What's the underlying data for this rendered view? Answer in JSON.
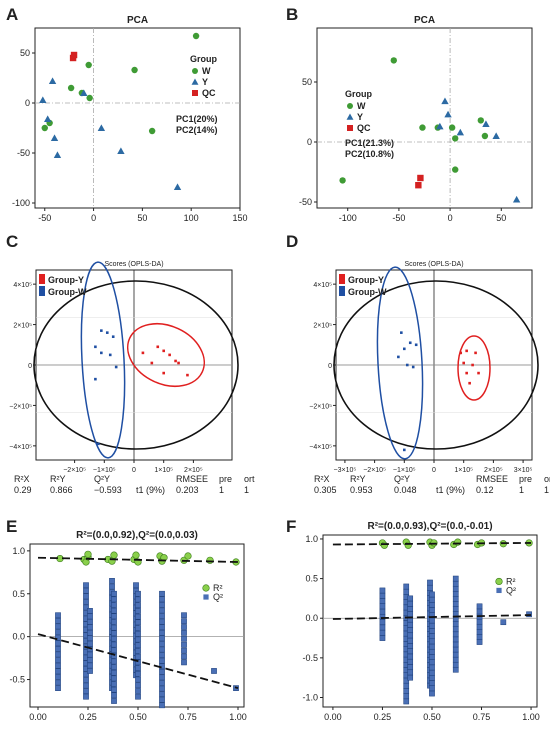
{
  "panel_labels": [
    "A",
    "B",
    "C",
    "D",
    "E",
    "F"
  ],
  "colors": {
    "W": "#3f9b35",
    "Y": "#2c6aa3",
    "QC": "#d42121",
    "groupY": "#e02020",
    "groupW": "#1f4fa3",
    "r2": "#8ad04b",
    "q2": "#4a6fb5"
  },
  "chart_data": [
    {
      "id": "A",
      "type": "scatter",
      "title": "PCA",
      "xlim": [
        -60,
        150
      ],
      "ylim": [
        -105,
        75
      ],
      "xticks": [
        "-50",
        "0",
        "50",
        "100",
        "150"
      ],
      "xtick_values": [
        -50,
        0,
        50,
        100,
        150
      ],
      "yticks": [
        "50",
        "0",
        "-50",
        "-100"
      ],
      "ytick_values": [
        50,
        0,
        -50,
        -100
      ],
      "legend_title": "Group",
      "series": [
        {
          "name": "W",
          "shape": "circle",
          "points": [
            [
              105,
              67
            ],
            [
              42,
              33
            ],
            [
              -5,
              38
            ],
            [
              -23,
              15
            ],
            [
              -45,
              -20
            ],
            [
              -50,
              -25
            ],
            [
              -12,
              10
            ],
            [
              -4,
              5
            ],
            [
              60,
              -28
            ]
          ]
        },
        {
          "name": "Y",
          "shape": "triangle",
          "points": [
            [
              -52,
              3
            ],
            [
              -47,
              -16
            ],
            [
              -40,
              -35
            ],
            [
              -37,
              -52
            ],
            [
              -10,
              10
            ],
            [
              8,
              -25
            ],
            [
              28,
              -48
            ],
            [
              86,
              -84
            ],
            [
              -42,
              22
            ]
          ]
        },
        {
          "name": "QC",
          "shape": "square",
          "points": [
            [
              -21,
              45
            ],
            [
              -20,
              48
            ]
          ]
        }
      ],
      "pc_text": [
        "PC1(20%)",
        "PC2(14%)"
      ]
    },
    {
      "id": "B",
      "type": "scatter",
      "title": "PCA",
      "xlim": [
        -130,
        80
      ],
      "ylim": [
        -55,
        95
      ],
      "xticks": [
        "-100",
        "-50",
        "0",
        "50"
      ],
      "xtick_values": [
        -100,
        -50,
        0,
        50
      ],
      "yticks": [
        "50",
        "0",
        "-50"
      ],
      "ytick_values": [
        50,
        0,
        -50
      ],
      "legend_title": "Group",
      "series": [
        {
          "name": "W",
          "shape": "circle",
          "points": [
            [
              -55,
              68
            ],
            [
              -27,
              12
            ],
            [
              -12,
              12
            ],
            [
              5,
              -23
            ],
            [
              2,
              12
            ],
            [
              30,
              18
            ],
            [
              34,
              5
            ],
            [
              -105,
              -32
            ],
            [
              5,
              3
            ]
          ]
        },
        {
          "name": "Y",
          "shape": "triangle",
          "points": [
            [
              -5,
              34
            ],
            [
              -2,
              23
            ],
            [
              10,
              8
            ],
            [
              35,
              15
            ],
            [
              45,
              5
            ],
            [
              65,
              -48
            ],
            [
              -10,
              13
            ]
          ]
        },
        {
          "name": "QC",
          "shape": "square",
          "points": [
            [
              -29,
              -30
            ],
            [
              -31,
              -36
            ]
          ]
        }
      ],
      "pc_text": [
        "PC1(21.3%)",
        "PC2(10.8%)"
      ]
    },
    {
      "id": "C",
      "type": "scatter",
      "title": "Scores (OPLS-DA)",
      "xlim": [
        -330000,
        330000
      ],
      "ylim": [
        -470000,
        470000
      ],
      "xticks": [
        "−2×10⁵",
        "−1×10⁵",
        "0",
        "1×10⁵",
        "2×10⁵"
      ],
      "xtick_values": [
        -200000,
        -100000,
        0,
        100000,
        200000
      ],
      "yticks": [
        "4×10⁵",
        "2×10⁵",
        "0",
        "−2×10⁵",
        "−4×10⁵"
      ],
      "ytick_values": [
        400000,
        200000,
        0,
        -200000,
        -400000
      ],
      "legend": [
        "Group-Y",
        "Group-W"
      ],
      "series": [
        {
          "name": "Group-Y",
          "points": [
            [
              30000,
              60000
            ],
            [
              80000,
              90000
            ],
            [
              100000,
              70000
            ],
            [
              60000,
              10000
            ],
            [
              100000,
              -40000
            ],
            [
              120000,
              50000
            ],
            [
              150000,
              10000
            ],
            [
              180000,
              -50000
            ],
            [
              140000,
              20000
            ]
          ]
        },
        {
          "name": "Group-W",
          "points": [
            [
              -110000,
              170000
            ],
            [
              -90000,
              160000
            ],
            [
              -70000,
              140000
            ],
            [
              -130000,
              90000
            ],
            [
              -80000,
              50000
            ],
            [
              -110000,
              60000
            ],
            [
              -60000,
              -10000
            ],
            [
              -130000,
              -70000
            ],
            [
              -120000,
              -390000
            ]
          ]
        }
      ],
      "xlabel": "t1 (9%)",
      "stats_header": [
        "R²X",
        "R²Y",
        "Q²Y",
        "RMSEE",
        "pre",
        "ort"
      ],
      "stats_values": [
        "0.29",
        "0.866",
        "−0.593",
        "0.203",
        "1",
        "1"
      ]
    },
    {
      "id": "D",
      "type": "scatter",
      "title": "Scores (OPLS-DA)",
      "xlim": [
        -330000,
        330000
      ],
      "ylim": [
        -470000,
        470000
      ],
      "xticks": [
        "−3×10⁵",
        "−2×10⁵",
        "−1×10⁵",
        "0",
        "1×10⁵",
        "2×10⁵",
        "3×10⁵"
      ],
      "xtick_values": [
        -300000,
        -200000,
        -100000,
        0,
        100000,
        200000,
        300000
      ],
      "yticks": [
        "4×10⁵",
        "2×10⁵",
        "0",
        "−2×10⁵",
        "−4×10⁵"
      ],
      "ytick_values": [
        400000,
        200000,
        0,
        -200000,
        -400000
      ],
      "legend": [
        "Group-Y",
        "Group-W"
      ],
      "series": [
        {
          "name": "Group-Y",
          "points": [
            [
              90000,
              60000
            ],
            [
              110000,
              70000
            ],
            [
              140000,
              60000
            ],
            [
              100000,
              10000
            ],
            [
              130000,
              0
            ],
            [
              110000,
              -40000
            ],
            [
              150000,
              -40000
            ],
            [
              120000,
              -90000
            ]
          ]
        },
        {
          "name": "Group-W",
          "points": [
            [
              -110000,
              160000
            ],
            [
              -80000,
              110000
            ],
            [
              -100000,
              80000
            ],
            [
              -60000,
              100000
            ],
            [
              -120000,
              40000
            ],
            [
              -90000,
              0
            ],
            [
              -70000,
              -10000
            ],
            [
              -100000,
              -420000
            ]
          ]
        }
      ],
      "xlabel": "t1 (9%)",
      "stats_header": [
        "R²X",
        "R²Y",
        "Q²Y",
        "RMSEE",
        "pre",
        "ort"
      ],
      "stats_values": [
        "0.305",
        "0.953",
        "0.048",
        "0.12",
        "1",
        "1"
      ]
    },
    {
      "id": "E",
      "type": "scatter",
      "title": "R²=(0.0,0.92),Q²=(0.0,0.03)",
      "xlim": [
        -0.04,
        1.03
      ],
      "ylim": [
        -0.82,
        1.08
      ],
      "xticks": [
        "0.00",
        "0.25",
        "0.50",
        "0.75",
        "1.00"
      ],
      "xtick_values": [
        0,
        0.25,
        0.5,
        0.75,
        1
      ],
      "yticks": [
        "1.0",
        "0.5",
        "0.0",
        "-0.5"
      ],
      "ytick_values": [
        1,
        0.5,
        0,
        -0.5
      ],
      "legend": [
        "R²",
        "Q²"
      ],
      "r2_points": [
        [
          0.11,
          0.91
        ],
        [
          0.23,
          0.9
        ],
        [
          0.24,
          0.87
        ],
        [
          0.25,
          0.93
        ],
        [
          0.25,
          0.96
        ],
        [
          0.35,
          0.9
        ],
        [
          0.37,
          0.88
        ],
        [
          0.38,
          0.95
        ],
        [
          0.48,
          0.9
        ],
        [
          0.49,
          0.95
        ],
        [
          0.5,
          0.87
        ],
        [
          0.61,
          0.94
        ],
        [
          0.62,
          0.88
        ],
        [
          0.63,
          0.92
        ],
        [
          0.73,
          0.89
        ],
        [
          0.75,
          0.94
        ],
        [
          0.86,
          0.89
        ],
        [
          0.99,
          0.87
        ]
      ],
      "q2_columns": [
        {
          "x": 0.1,
          "min": -0.6,
          "max": 0.25
        },
        {
          "x": 0.24,
          "min": -0.7,
          "max": 0.6
        },
        {
          "x": 0.26,
          "min": -0.4,
          "max": 0.3
        },
        {
          "x": 0.37,
          "min": -0.6,
          "max": 0.65
        },
        {
          "x": 0.38,
          "min": -0.75,
          "max": 0.5
        },
        {
          "x": 0.49,
          "min": -0.45,
          "max": 0.6
        },
        {
          "x": 0.5,
          "min": -0.7,
          "max": 0.5
        },
        {
          "x": 0.62,
          "min": -0.8,
          "max": 0.5
        },
        {
          "x": 0.73,
          "min": -0.3,
          "max": 0.25
        },
        {
          "x": 0.88,
          "min": -0.4,
          "max": -0.4
        },
        {
          "x": 0.99,
          "min": -0.6,
          "max": -0.6
        }
      ],
      "r2_line": [
        [
          0,
          0.92
        ],
        [
          1,
          0.87
        ]
      ],
      "q2_line": [
        [
          0,
          0.03
        ],
        [
          1,
          -0.6
        ]
      ]
    },
    {
      "id": "F",
      "type": "scatter",
      "title": "R²=(0.0,0.93),Q²=(0.0,-0.01)",
      "xlim": [
        -0.05,
        1.03
      ],
      "ylim": [
        -1.12,
        1.05
      ],
      "xticks": [
        "0.00",
        "0.25",
        "0.50",
        "0.75",
        "1.00"
      ],
      "xtick_values": [
        0,
        0.25,
        0.5,
        0.75,
        1
      ],
      "yticks": [
        "1.0",
        "0.5",
        "0.0",
        "-0.5",
        "-1.0"
      ],
      "ytick_values": [
        1,
        0.5,
        0,
        -0.5,
        -1
      ],
      "legend": [
        "R²",
        "Q²"
      ],
      "r2_points": [
        [
          0.25,
          0.95
        ],
        [
          0.26,
          0.92
        ],
        [
          0.37,
          0.96
        ],
        [
          0.38,
          0.92
        ],
        [
          0.49,
          0.96
        ],
        [
          0.5,
          0.92
        ],
        [
          0.51,
          0.95
        ],
        [
          0.61,
          0.93
        ],
        [
          0.63,
          0.96
        ],
        [
          0.73,
          0.93
        ],
        [
          0.75,
          0.95
        ],
        [
          0.86,
          0.94
        ],
        [
          0.99,
          0.95
        ]
      ],
      "q2_columns": [
        {
          "x": 0.25,
          "min": -0.25,
          "max": 0.35
        },
        {
          "x": 0.37,
          "min": -1.05,
          "max": 0.4
        },
        {
          "x": 0.39,
          "min": -0.75,
          "max": 0.25
        },
        {
          "x": 0.49,
          "min": -0.85,
          "max": 0.45
        },
        {
          "x": 0.5,
          "min": -0.95,
          "max": 0.3
        },
        {
          "x": 0.62,
          "min": -0.65,
          "max": 0.5
        },
        {
          "x": 0.74,
          "min": -0.3,
          "max": 0.15
        },
        {
          "x": 0.86,
          "min": -0.05,
          "max": -0.05
        },
        {
          "x": 0.99,
          "min": 0.05,
          "max": 0.05
        }
      ],
      "r2_line": [
        [
          0,
          0.93
        ],
        [
          1,
          0.95
        ]
      ],
      "q2_line": [
        [
          0,
          -0.01
        ],
        [
          1,
          0.04
        ]
      ]
    }
  ]
}
